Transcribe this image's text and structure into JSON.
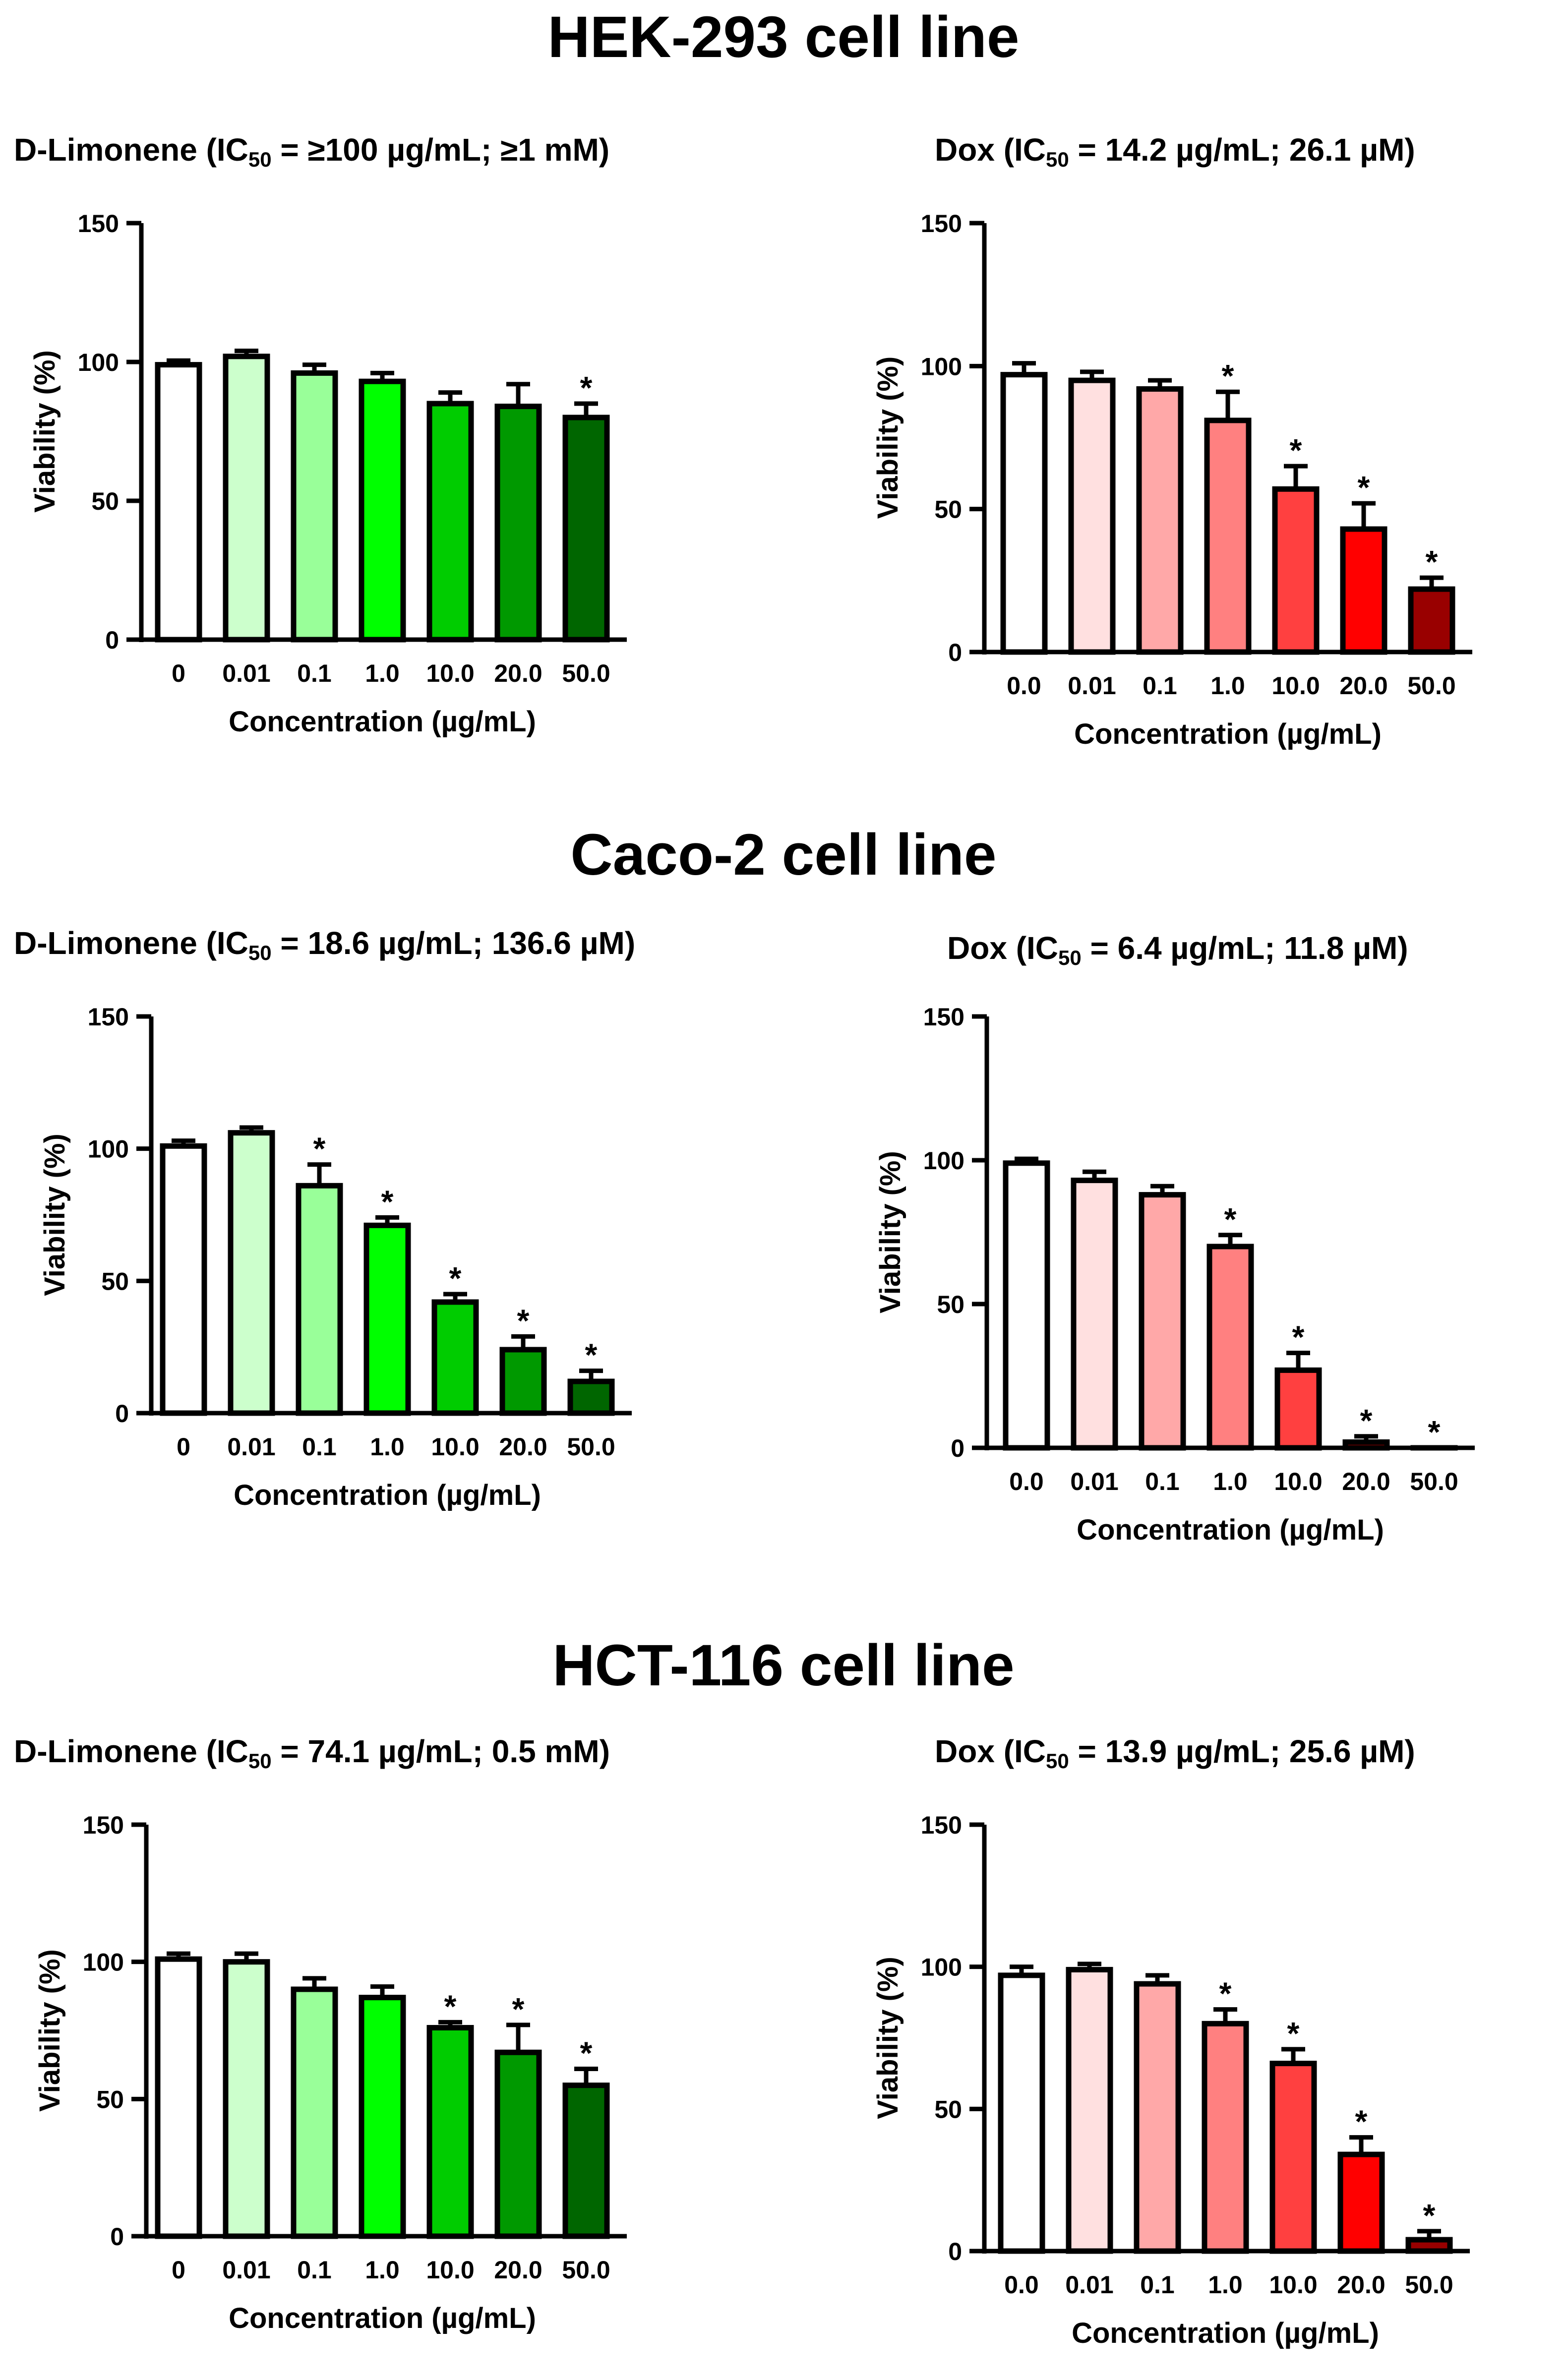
{
  "sections": [
    {
      "title": "HEK-293 cell line",
      "panels": [
        {
          "title_pre": "D-Limonene (IC",
          "title_sub": "50",
          "title_post": " = ≥100 µg/mL; ≥1 mM)"
        },
        {
          "title_pre": "Dox (IC",
          "title_sub": "50",
          "title_post": " = 14.2 µg/mL; 26.1 µM)"
        }
      ]
    },
    {
      "title": "Caco-2 cell line",
      "panels": [
        {
          "title_pre": "D-Limonene (IC",
          "title_sub": "50",
          "title_post": " = 18.6 µg/mL; 136.6 µM)"
        },
        {
          "title_pre": "Dox (IC",
          "title_sub": "50",
          "title_post": " = 6.4 µg/mL; 11.8 µM)"
        }
      ]
    },
    {
      "title": "HCT-116 cell line",
      "panels": [
        {
          "title_pre": "D-Limonene (IC",
          "title_sub": "50",
          "title_post": " = 74.1 µg/mL; 0.5 mM)"
        },
        {
          "title_pre": "Dox (IC",
          "title_sub": "50",
          "title_post": " = 13.9 µg/mL; 25.6 µM)"
        }
      ]
    }
  ],
  "chart_data": [
    {
      "type": "bar",
      "cell_line": "HEK-293",
      "compound": "D-Limonene",
      "categories": [
        "0",
        "0.01",
        "0.1",
        "1.0",
        "10.0",
        "20.0",
        "50.0"
      ],
      "values": [
        99,
        102,
        96,
        93,
        85,
        84,
        80
      ],
      "errors": [
        1.5,
        2,
        3,
        3,
        4,
        8,
        5
      ],
      "significant": [
        false,
        false,
        false,
        false,
        false,
        false,
        true
      ],
      "colors": [
        "#ffffff",
        "#ccffcc",
        "#99ff99",
        "#00ff00",
        "#00cc00",
        "#009900",
        "#006600"
      ],
      "xlabel": "Concentration (µg/mL)",
      "ylabel": "Viability (%)",
      "ylim": [
        0,
        150
      ],
      "yticks": [
        0,
        50,
        100,
        150
      ],
      "marker": "*"
    },
    {
      "type": "bar",
      "cell_line": "HEK-293",
      "compound": "Dox",
      "categories": [
        "0.0",
        "0.01",
        "0.1",
        "1.0",
        "10.0",
        "20.0",
        "50.0"
      ],
      "values": [
        97,
        95,
        92,
        81,
        57,
        43,
        22
      ],
      "errors": [
        4,
        3,
        3,
        10,
        8,
        9,
        4
      ],
      "significant": [
        false,
        false,
        false,
        true,
        true,
        true,
        true
      ],
      "colors": [
        "#ffffff",
        "#ffe0e0",
        "#ffa8a8",
        "#ff8080",
        "#ff4040",
        "#ff0000",
        "#990000"
      ],
      "xlabel": "Concentration (µg/mL)",
      "ylabel": "Viability (%)",
      "ylim": [
        0,
        150
      ],
      "yticks": [
        0,
        50,
        100,
        150
      ],
      "marker": "*"
    },
    {
      "type": "bar",
      "cell_line": "Caco-2",
      "compound": "D-Limonene",
      "categories": [
        "0",
        "0.01",
        "0.1",
        "1.0",
        "10.0",
        "20.0",
        "50.0"
      ],
      "values": [
        101,
        106,
        86,
        71,
        42,
        24,
        12
      ],
      "errors": [
        2,
        2,
        8,
        3,
        3,
        5,
        4
      ],
      "significant": [
        false,
        false,
        true,
        true,
        true,
        true,
        true
      ],
      "colors": [
        "#ffffff",
        "#ccffcc",
        "#99ff99",
        "#00ff00",
        "#00cc00",
        "#009900",
        "#006600"
      ],
      "xlabel": "Concentration (µg/mL)",
      "ylabel": "Viability (%)",
      "ylim": [
        0,
        150
      ],
      "yticks": [
        0,
        50,
        100,
        150
      ],
      "marker": "*"
    },
    {
      "type": "bar",
      "cell_line": "Caco-2",
      "compound": "Dox",
      "categories": [
        "0.0",
        "0.01",
        "0.1",
        "1.0",
        "10.0",
        "20.0",
        "50.0"
      ],
      "values": [
        99,
        93,
        88,
        70,
        27,
        2,
        0
      ],
      "errors": [
        1.5,
        3,
        3,
        4,
        6,
        2,
        0
      ],
      "significant": [
        false,
        false,
        false,
        true,
        true,
        true,
        true
      ],
      "colors": [
        "#ffffff",
        "#ffe0e0",
        "#ffa8a8",
        "#ff8080",
        "#ff4040",
        "#ff0000",
        "#990000"
      ],
      "xlabel": "Concentration (µg/mL)",
      "ylabel": "Viability (%)",
      "ylim": [
        0,
        150
      ],
      "yticks": [
        0,
        50,
        100,
        150
      ],
      "marker": "*"
    },
    {
      "type": "bar",
      "cell_line": "HCT-116",
      "compound": "D-Limonene",
      "categories": [
        "0",
        "0.01",
        "0.1",
        "1.0",
        "10.0",
        "20.0",
        "50.0"
      ],
      "values": [
        101,
        100,
        90,
        87,
        76,
        67,
        55
      ],
      "errors": [
        2,
        3,
        4,
        4,
        2,
        10,
        6
      ],
      "significant": [
        false,
        false,
        false,
        false,
        true,
        true,
        true
      ],
      "colors": [
        "#ffffff",
        "#ccffcc",
        "#99ff99",
        "#00ff00",
        "#00cc00",
        "#009900",
        "#006600"
      ],
      "xlabel": "Concentration (µg/mL)",
      "ylabel": "Viability (%)",
      "ylim": [
        0,
        150
      ],
      "yticks": [
        0,
        50,
        100,
        150
      ],
      "marker": "*"
    },
    {
      "type": "bar",
      "cell_line": "HCT-116",
      "compound": "Dox",
      "categories": [
        "0.0",
        "0.01",
        "0.1",
        "1.0",
        "10.0",
        "20.0",
        "50.0"
      ],
      "values": [
        97,
        99,
        94,
        80,
        66,
        34,
        4
      ],
      "errors": [
        3,
        2,
        3,
        5,
        5,
        6,
        3
      ],
      "significant": [
        false,
        false,
        false,
        true,
        true,
        true,
        true
      ],
      "colors": [
        "#ffffff",
        "#ffe0e0",
        "#ffa8a8",
        "#ff8080",
        "#ff4040",
        "#ff0000",
        "#990000"
      ],
      "xlabel": "Concentration (µg/mL)",
      "ylabel": "Viability (%)",
      "ylim": [
        0,
        150
      ],
      "yticks": [
        0,
        50,
        100,
        150
      ],
      "marker": "*"
    }
  ]
}
